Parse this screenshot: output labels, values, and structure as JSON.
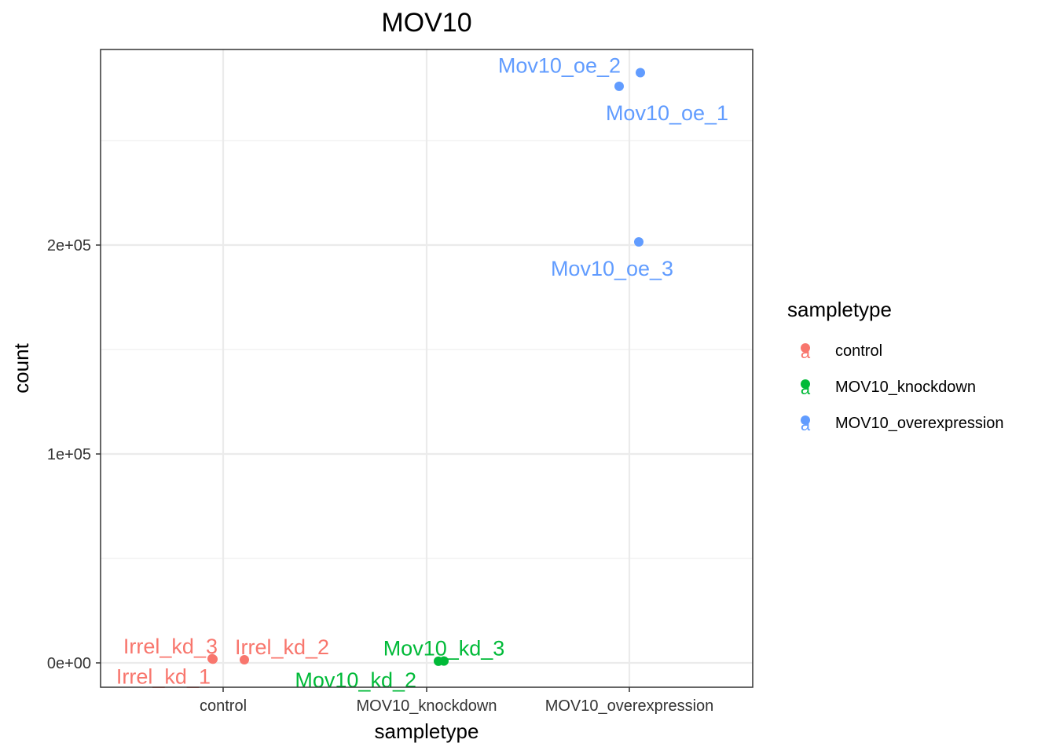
{
  "chart_data": {
    "type": "scatter",
    "title": "MOV10",
    "xlabel": "sampletype",
    "ylabel": "count",
    "categories": [
      "control",
      "MOV10_knockdown",
      "MOV10_overexpression"
    ],
    "y_ticks": [
      0,
      100000,
      200000
    ],
    "y_tick_labels": [
      "0e+00",
      "1e+05",
      "2e+05"
    ],
    "ylim": [
      -12000,
      296000
    ],
    "grid": true,
    "legend": {
      "title": "sampletype",
      "position": "right",
      "key_glyph": "a",
      "entries": [
        "control",
        "MOV10_knockdown",
        "MOV10_overexpression"
      ]
    },
    "colors": {
      "control": "#F8766D",
      "MOV10_knockdown": "#00BA38",
      "MOV10_overexpression": "#619CFF"
    },
    "series": [
      {
        "name": "control",
        "points": [
          {
            "label": "Irrel_kd_1",
            "category": "control",
            "y": 2000
          },
          {
            "label": "Irrel_kd_2",
            "category": "control",
            "y": 1500
          },
          {
            "label": "Irrel_kd_3",
            "category": "control",
            "y": 1800
          }
        ]
      },
      {
        "name": "MOV10_knockdown",
        "points": [
          {
            "label": "Mov10_kd_2",
            "category": "MOV10_knockdown",
            "y": 800
          },
          {
            "label": "Mov10_kd_3",
            "category": "MOV10_knockdown",
            "y": 900
          }
        ]
      },
      {
        "name": "MOV10_overexpression",
        "points": [
          {
            "label": "Mov10_oe_1",
            "category": "MOV10_overexpression",
            "y": 276000
          },
          {
            "label": "Mov10_oe_2",
            "category": "MOV10_overexpression",
            "y": 282500
          },
          {
            "label": "Mov10_oe_3",
            "category": "MOV10_overexpression",
            "y": 201500
          }
        ]
      }
    ]
  }
}
